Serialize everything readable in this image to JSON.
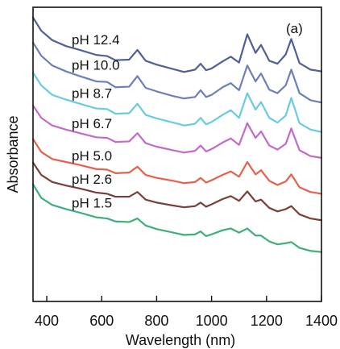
{
  "chart_data": {
    "type": "line",
    "title": "",
    "panel_label": "(a)",
    "xlabel": "Wavelength (nm)",
    "ylabel": "Absorbance",
    "xlim": [
      350,
      1400
    ],
    "ylim": [
      0,
      10
    ],
    "xticks": [
      400,
      600,
      800,
      1000,
      1200,
      1400
    ],
    "yticks": [],
    "grid": false,
    "legend": "none",
    "series": [
      {
        "name": "pH 12.4",
        "color": "#4f5f9a",
        "points": [
          [
            350,
            9.65
          ],
          [
            380,
            9.2
          ],
          [
            420,
            8.88
          ],
          [
            470,
            8.68
          ],
          [
            520,
            8.55
          ],
          [
            580,
            8.38
          ],
          [
            620,
            8.34
          ],
          [
            650,
            8.2
          ],
          [
            700,
            8.22
          ],
          [
            730,
            8.55
          ],
          [
            760,
            8.18
          ],
          [
            800,
            8.05
          ],
          [
            860,
            7.9
          ],
          [
            900,
            7.8
          ],
          [
            940,
            7.88
          ],
          [
            960,
            8.08
          ],
          [
            980,
            7.86
          ],
          [
            1000,
            7.92
          ],
          [
            1040,
            8.16
          ],
          [
            1070,
            8.32
          ],
          [
            1100,
            8.12
          ],
          [
            1130,
            9.08
          ],
          [
            1160,
            8.45
          ],
          [
            1180,
            8.72
          ],
          [
            1210,
            8.18
          ],
          [
            1240,
            8.08
          ],
          [
            1270,
            8.4
          ],
          [
            1290,
            8.92
          ],
          [
            1320,
            8.1
          ],
          [
            1360,
            7.88
          ],
          [
            1400,
            7.82
          ]
        ]
      },
      {
        "name": "pH 10.0",
        "color": "#6c7fb9",
        "points": [
          [
            350,
            8.8
          ],
          [
            380,
            8.35
          ],
          [
            420,
            8.02
          ],
          [
            470,
            7.82
          ],
          [
            520,
            7.66
          ],
          [
            580,
            7.48
          ],
          [
            620,
            7.46
          ],
          [
            650,
            7.28
          ],
          [
            700,
            7.3
          ],
          [
            730,
            7.66
          ],
          [
            760,
            7.26
          ],
          [
            800,
            7.14
          ],
          [
            860,
            6.98
          ],
          [
            900,
            6.9
          ],
          [
            940,
            6.95
          ],
          [
            960,
            7.18
          ],
          [
            980,
            6.95
          ],
          [
            1000,
            7.02
          ],
          [
            1040,
            7.28
          ],
          [
            1070,
            7.42
          ],
          [
            1100,
            7.18
          ],
          [
            1130,
            8.02
          ],
          [
            1160,
            7.48
          ],
          [
            1180,
            7.75
          ],
          [
            1210,
            7.2
          ],
          [
            1240,
            7.08
          ],
          [
            1270,
            7.35
          ],
          [
            1290,
            7.88
          ],
          [
            1320,
            7.08
          ],
          [
            1360,
            6.84
          ],
          [
            1400,
            6.76
          ]
        ]
      },
      {
        "name": "pH 8.7",
        "color": "#68cbe0",
        "points": [
          [
            350,
            7.78
          ],
          [
            380,
            7.34
          ],
          [
            420,
            7.02
          ],
          [
            470,
            6.86
          ],
          [
            520,
            6.72
          ],
          [
            580,
            6.56
          ],
          [
            620,
            6.54
          ],
          [
            650,
            6.38
          ],
          [
            700,
            6.4
          ],
          [
            730,
            6.72
          ],
          [
            760,
            6.34
          ],
          [
            800,
            6.22
          ],
          [
            860,
            6.08
          ],
          [
            900,
            5.98
          ],
          [
            940,
            6.04
          ],
          [
            960,
            6.24
          ],
          [
            980,
            6.02
          ],
          [
            1000,
            6.1
          ],
          [
            1040,
            6.34
          ],
          [
            1070,
            6.5
          ],
          [
            1100,
            6.24
          ],
          [
            1130,
            7.08
          ],
          [
            1160,
            6.52
          ],
          [
            1180,
            6.78
          ],
          [
            1210,
            6.24
          ],
          [
            1240,
            6.08
          ],
          [
            1270,
            6.32
          ],
          [
            1290,
            6.92
          ],
          [
            1320,
            6.06
          ],
          [
            1360,
            5.84
          ],
          [
            1400,
            5.76
          ]
        ]
      },
      {
        "name": "pH 6.7",
        "color": "#c36ac7",
        "points": [
          [
            350,
            6.66
          ],
          [
            380,
            6.24
          ],
          [
            420,
            5.98
          ],
          [
            470,
            5.84
          ],
          [
            520,
            5.72
          ],
          [
            580,
            5.58
          ],
          [
            620,
            5.56
          ],
          [
            650,
            5.42
          ],
          [
            700,
            5.44
          ],
          [
            730,
            5.72
          ],
          [
            760,
            5.38
          ],
          [
            800,
            5.26
          ],
          [
            860,
            5.14
          ],
          [
            900,
            5.06
          ],
          [
            940,
            5.12
          ],
          [
            960,
            5.3
          ],
          [
            980,
            5.1
          ],
          [
            1000,
            5.18
          ],
          [
            1040,
            5.4
          ],
          [
            1070,
            5.54
          ],
          [
            1100,
            5.32
          ],
          [
            1130,
            6.06
          ],
          [
            1160,
            5.56
          ],
          [
            1180,
            5.78
          ],
          [
            1210,
            5.3
          ],
          [
            1240,
            5.16
          ],
          [
            1270,
            5.36
          ],
          [
            1290,
            5.88
          ],
          [
            1320,
            5.14
          ],
          [
            1360,
            4.94
          ],
          [
            1400,
            4.88
          ]
        ]
      },
      {
        "name": "pH 5.0",
        "color": "#e5614b",
        "points": [
          [
            350,
            5.52
          ],
          [
            380,
            5.08
          ],
          [
            420,
            4.84
          ],
          [
            470,
            4.74
          ],
          [
            520,
            4.64
          ],
          [
            580,
            4.5
          ],
          [
            620,
            4.48
          ],
          [
            650,
            4.36
          ],
          [
            700,
            4.38
          ],
          [
            730,
            4.58
          ],
          [
            760,
            4.3
          ],
          [
            800,
            4.2
          ],
          [
            860,
            4.1
          ],
          [
            900,
            4.02
          ],
          [
            940,
            4.06
          ],
          [
            960,
            4.2
          ],
          [
            980,
            4.04
          ],
          [
            1000,
            4.12
          ],
          [
            1040,
            4.3
          ],
          [
            1070,
            4.42
          ],
          [
            1100,
            4.24
          ],
          [
            1130,
            4.74
          ],
          [
            1160,
            4.32
          ],
          [
            1180,
            4.46
          ],
          [
            1210,
            4.1
          ],
          [
            1240,
            3.96
          ],
          [
            1270,
            4.08
          ],
          [
            1290,
            4.32
          ],
          [
            1320,
            3.88
          ],
          [
            1360,
            3.72
          ],
          [
            1400,
            3.66
          ]
        ]
      },
      {
        "name": "pH 2.6",
        "color": "#7b3f38",
        "points": [
          [
            350,
            4.72
          ],
          [
            380,
            4.3
          ],
          [
            420,
            4.06
          ],
          [
            470,
            3.94
          ],
          [
            520,
            3.84
          ],
          [
            580,
            3.7
          ],
          [
            620,
            3.66
          ],
          [
            650,
            3.56
          ],
          [
            700,
            3.56
          ],
          [
            730,
            3.72
          ],
          [
            760,
            3.46
          ],
          [
            800,
            3.36
          ],
          [
            860,
            3.26
          ],
          [
            900,
            3.2
          ],
          [
            940,
            3.24
          ],
          [
            960,
            3.36
          ],
          [
            980,
            3.22
          ],
          [
            1000,
            3.3
          ],
          [
            1040,
            3.48
          ],
          [
            1070,
            3.58
          ],
          [
            1100,
            3.42
          ],
          [
            1130,
            3.74
          ],
          [
            1160,
            3.4
          ],
          [
            1180,
            3.46
          ],
          [
            1210,
            3.18
          ],
          [
            1240,
            3.06
          ],
          [
            1270,
            3.14
          ],
          [
            1290,
            3.24
          ],
          [
            1320,
            2.96
          ],
          [
            1360,
            2.82
          ],
          [
            1400,
            2.76
          ]
        ]
      },
      {
        "name": "pH 1.5",
        "color": "#3fae7d",
        "points": [
          [
            350,
            3.98
          ],
          [
            380,
            3.52
          ],
          [
            420,
            3.28
          ],
          [
            470,
            3.14
          ],
          [
            520,
            3.02
          ],
          [
            580,
            2.86
          ],
          [
            620,
            2.82
          ],
          [
            650,
            2.72
          ],
          [
            700,
            2.7
          ],
          [
            730,
            2.82
          ],
          [
            760,
            2.58
          ],
          [
            800,
            2.46
          ],
          [
            860,
            2.34
          ],
          [
            900,
            2.26
          ],
          [
            940,
            2.28
          ],
          [
            960,
            2.38
          ],
          [
            980,
            2.22
          ],
          [
            1000,
            2.28
          ],
          [
            1040,
            2.42
          ],
          [
            1070,
            2.48
          ],
          [
            1100,
            2.34
          ],
          [
            1130,
            2.48
          ],
          [
            1160,
            2.24
          ],
          [
            1180,
            2.24
          ],
          [
            1210,
            2.04
          ],
          [
            1240,
            1.94
          ],
          [
            1270,
            1.98
          ],
          [
            1290,
            2.02
          ],
          [
            1320,
            1.82
          ],
          [
            1360,
            1.72
          ],
          [
            1400,
            1.68
          ]
        ]
      }
    ]
  }
}
